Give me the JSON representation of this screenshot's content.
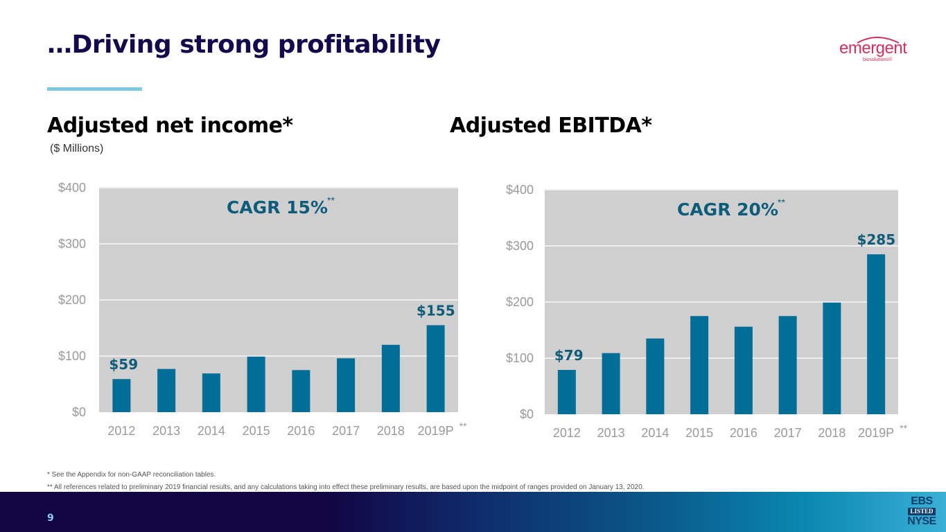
{
  "slide": {
    "title": "…Driving strong profitability",
    "page_number": "9"
  },
  "logo": {
    "wordmark": "emergent",
    "subtext": "biosolutions®",
    "brand_color": "#d5305d"
  },
  "left_panel": {
    "heading": "Adjusted net income*",
    "units": "($ Millions)"
  },
  "right_panel": {
    "heading": "Adjusted EBITDA*"
  },
  "footnotes": [
    "* See the Appendix for non-GAAP reconciliation tables.",
    "** All references related to preliminary 2019 financial results, and any calculations taking into effect these preliminary results, are based upon the midpoint of ranges provided on January 13, 2020."
  ],
  "exchange_badge": {
    "line1": "EBS",
    "line2": "LISTED",
    "line3": "NYSE"
  },
  "colors": {
    "title": "#120a4a",
    "bar": "#006e96",
    "plot_bg": "#d0cfd0",
    "annotation": "#0e5c7a",
    "axis_label": "#9a9a9a",
    "rule": "#7fc9e0"
  },
  "chart_data": [
    {
      "type": "bar",
      "title": "Adjusted net income*",
      "subtitle": "($ Millions)",
      "xlabel": "",
      "ylabel": "",
      "categories": [
        "2012",
        "2013",
        "2014",
        "2015",
        "2016",
        "2017",
        "2018",
        "2019P"
      ],
      "category_suffix": [
        "",
        "",
        "",
        "",
        "",
        "",
        "",
        "**"
      ],
      "values": [
        59,
        77,
        69,
        99,
        75,
        96,
        120,
        155
      ],
      "ylim": [
        0,
        400
      ],
      "yticks": [
        0,
        100,
        200,
        300,
        400
      ],
      "ytick_labels": [
        "$0",
        "$100",
        "$200",
        "$300",
        "$400"
      ],
      "grid": true,
      "data_labels": [
        {
          "index": 0,
          "text": "$59"
        },
        {
          "index": 7,
          "text": "$155"
        }
      ],
      "annotation": {
        "text": "CAGR 15%",
        "superscript": "**"
      }
    },
    {
      "type": "bar",
      "title": "Adjusted EBITDA*",
      "xlabel": "",
      "ylabel": "",
      "categories": [
        "2012",
        "2013",
        "2014",
        "2015",
        "2016",
        "2017",
        "2018",
        "2019P"
      ],
      "category_suffix": [
        "",
        "",
        "",
        "",
        "",
        "",
        "",
        "**"
      ],
      "values": [
        79,
        109,
        135,
        175,
        156,
        175,
        199,
        285
      ],
      "ylim": [
        0,
        400
      ],
      "yticks": [
        0,
        100,
        200,
        300,
        400
      ],
      "ytick_labels": [
        "$0",
        "$100",
        "$200",
        "$300",
        "$400"
      ],
      "grid": true,
      "data_labels": [
        {
          "index": 0,
          "text": "$79"
        },
        {
          "index": 7,
          "text": "$285"
        }
      ],
      "annotation": {
        "text": "CAGR 20%",
        "superscript": "**"
      }
    }
  ]
}
